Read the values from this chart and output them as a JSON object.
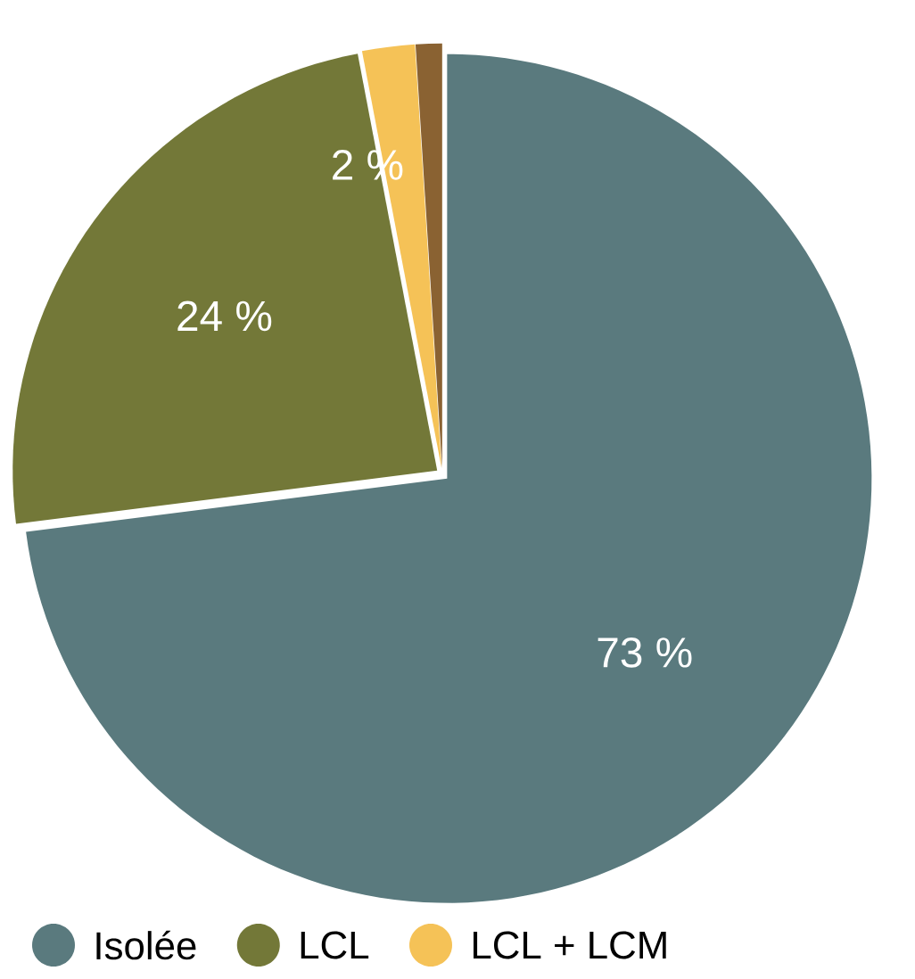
{
  "chart_data": {
    "type": "pie",
    "categories": [
      "Isolée",
      "LCL",
      "LCL + LCM",
      null
    ],
    "values": [
      73,
      24,
      2,
      1
    ],
    "colors": [
      "#5a7a7e",
      "#737838",
      "#f5c257",
      "#8a6232"
    ],
    "value_labels": [
      "73 %",
      "24 %",
      "2 %",
      null
    ],
    "legend": "bottom"
  }
}
